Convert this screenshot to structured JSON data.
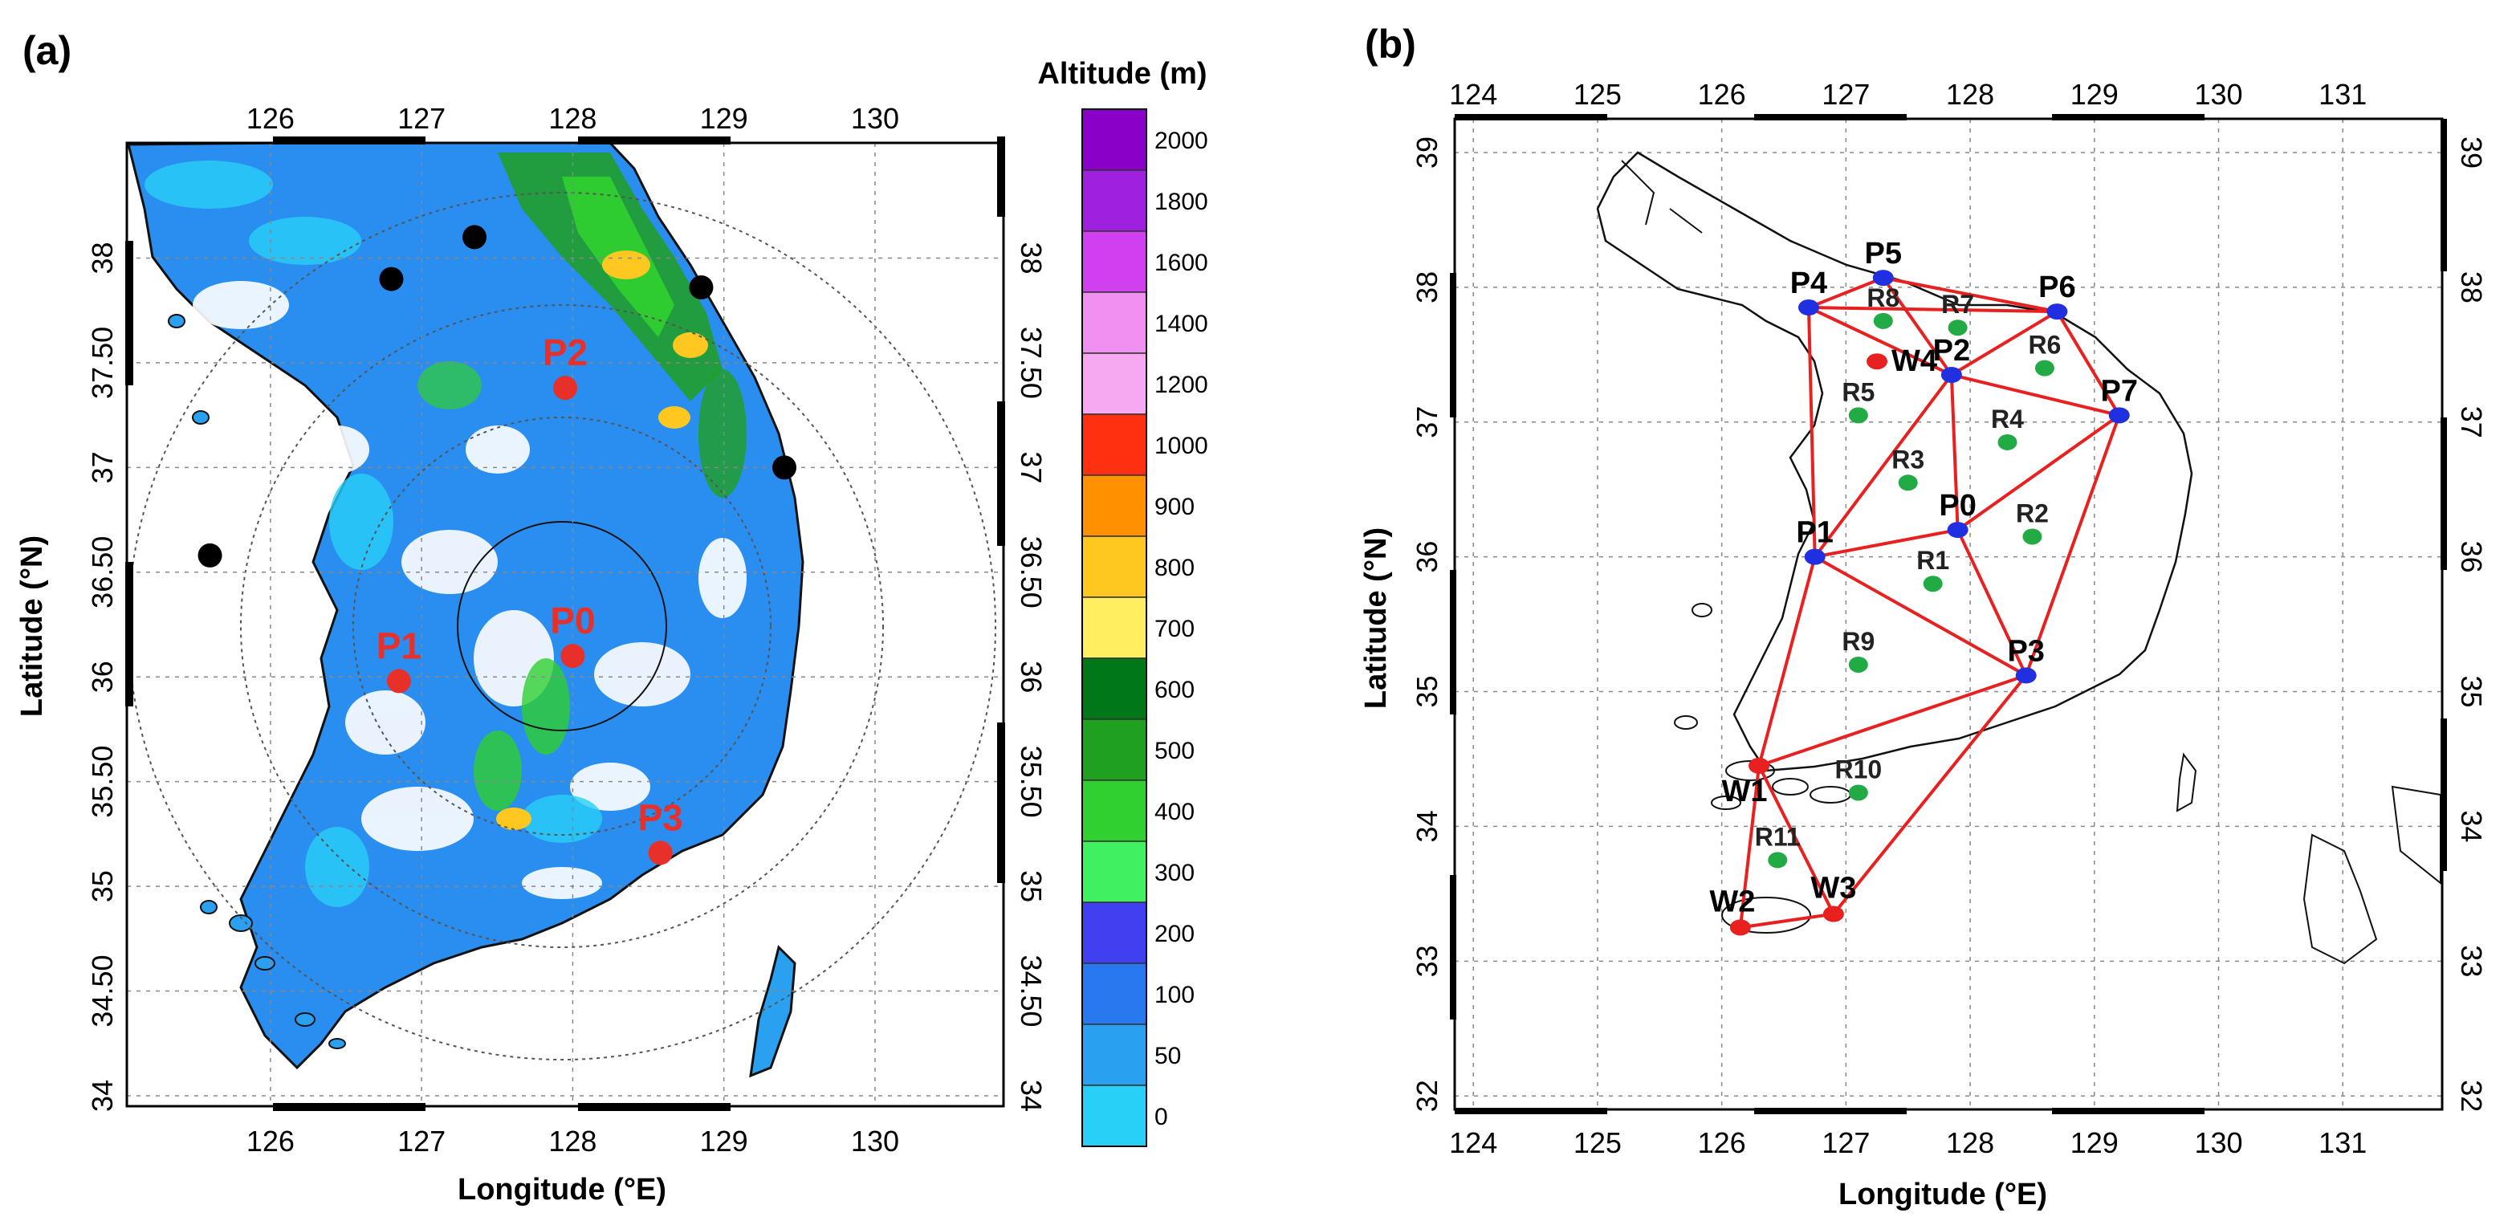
{
  "panel_a": {
    "label": "(a)",
    "colorbar": {
      "title": "Altitude (m)",
      "levels": [
        "2000",
        "1800",
        "1600",
        "1400",
        "1200",
        "1000",
        "900",
        "800",
        "700",
        "600",
        "500",
        "400",
        "300",
        "200",
        "100",
        "50",
        "0"
      ],
      "colors": [
        "#8a00c8",
        "#a020e0",
        "#d040f0",
        "#f090f0",
        "#f6a8f0",
        "#ff3010",
        "#ff9000",
        "#ffc820",
        "#ffee60",
        "#00781a",
        "#20a020",
        "#30d030",
        "#40f060",
        "#4040f0",
        "#2878f0",
        "#2aa0f0",
        "#28d0f8"
      ]
    },
    "x_axis": {
      "title": "Longitude (°E)",
      "ticks": [
        "126",
        "127",
        "128",
        "129",
        "130"
      ]
    },
    "y_axis": {
      "title": "Latitude (°N)",
      "ticks": [
        "34",
        "34.50",
        "35",
        "35.50",
        "36",
        "36.50",
        "37",
        "37.50",
        "38"
      ]
    },
    "sites": [
      {
        "name": "P0",
        "lon": 128.0,
        "lat": 36.1
      },
      {
        "name": "P1",
        "lon": 126.85,
        "lat": 35.98
      },
      {
        "name": "P2",
        "lon": 127.95,
        "lat": 37.38
      },
      {
        "name": "P3",
        "lon": 128.58,
        "lat": 35.16
      }
    ],
    "other_sites": [
      {
        "lon": 125.6,
        "lat": 36.58
      },
      {
        "lon": 126.8,
        "lat": 37.9
      },
      {
        "lon": 127.35,
        "lat": 38.1
      },
      {
        "lon": 128.85,
        "lat": 37.86
      },
      {
        "lon": 129.4,
        "lat": 37.0
      }
    ]
  },
  "panel_b": {
    "label": "(b)",
    "x_axis": {
      "title": "Longitude (°E)",
      "ticks": [
        "124",
        "125",
        "126",
        "127",
        "128",
        "129",
        "130",
        "131"
      ]
    },
    "y_axis": {
      "title": "Latitude (°N)",
      "ticks": [
        "32",
        "33",
        "34",
        "35",
        "36",
        "37",
        "38",
        "39"
      ]
    },
    "nodes": [
      {
        "name": "P0",
        "lon": 127.9,
        "lat": 36.2,
        "color": "#2030e0"
      },
      {
        "name": "P1",
        "lon": 126.75,
        "lat": 36.0,
        "color": "#2030e0"
      },
      {
        "name": "P2",
        "lon": 127.85,
        "lat": 37.35,
        "color": "#2030e0"
      },
      {
        "name": "P3",
        "lon": 128.45,
        "lat": 35.12,
        "color": "#2030e0"
      },
      {
        "name": "P4",
        "lon": 126.7,
        "lat": 37.85,
        "color": "#2030e0"
      },
      {
        "name": "P5",
        "lon": 127.3,
        "lat": 38.07,
        "color": "#2030e0"
      },
      {
        "name": "P6",
        "lon": 128.7,
        "lat": 37.82,
        "color": "#2030e0"
      },
      {
        "name": "P7",
        "lon": 129.2,
        "lat": 37.05,
        "color": "#2030e0"
      },
      {
        "name": "W1",
        "lon": 126.3,
        "lat": 34.45,
        "color": "#e82020"
      },
      {
        "name": "W2",
        "lon": 126.15,
        "lat": 33.25,
        "color": "#e82020"
      },
      {
        "name": "W3",
        "lon": 126.9,
        "lat": 33.35,
        "color": "#e82020"
      },
      {
        "name": "W4",
        "lon": 127.25,
        "lat": 37.45,
        "color": "#e82020"
      }
    ],
    "links": [
      [
        "P4",
        "P5"
      ],
      [
        "P5",
        "P6"
      ],
      [
        "P4",
        "P6"
      ],
      [
        "P5",
        "P2"
      ],
      [
        "P4",
        "P2"
      ],
      [
        "P2",
        "P6"
      ],
      [
        "P6",
        "P7"
      ],
      [
        "P2",
        "P7"
      ],
      [
        "P4",
        "P1"
      ],
      [
        "P2",
        "P1"
      ],
      [
        "P2",
        "P0"
      ],
      [
        "P0",
        "P7"
      ],
      [
        "P1",
        "P0"
      ],
      [
        "P0",
        "P3"
      ],
      [
        "P7",
        "P3"
      ],
      [
        "P1",
        "P3"
      ],
      [
        "P1",
        "W1"
      ],
      [
        "W1",
        "P3"
      ],
      [
        "W1",
        "W3"
      ],
      [
        "W3",
        "P3"
      ],
      [
        "W1",
        "W2"
      ],
      [
        "W2",
        "W3"
      ]
    ],
    "grid_cells": [
      {
        "name": "R1",
        "lon": 127.7,
        "lat": 35.8
      },
      {
        "name": "R2",
        "lon": 128.5,
        "lat": 36.15
      },
      {
        "name": "R3",
        "lon": 127.5,
        "lat": 36.55
      },
      {
        "name": "R4",
        "lon": 128.3,
        "lat": 36.85
      },
      {
        "name": "R5",
        "lon": 127.1,
        "lat": 37.05
      },
      {
        "name": "R6",
        "lon": 128.6,
        "lat": 37.4
      },
      {
        "name": "R7",
        "lon": 127.9,
        "lat": 37.7
      },
      {
        "name": "R8",
        "lon": 127.3,
        "lat": 37.75
      },
      {
        "name": "R9",
        "lon": 127.1,
        "lat": 35.2
      },
      {
        "name": "R10",
        "lon": 127.1,
        "lat": 34.25
      },
      {
        "name": "R11",
        "lon": 126.45,
        "lat": 33.75
      }
    ],
    "grid_color": "#22aa44",
    "link_color": "#e82020"
  }
}
